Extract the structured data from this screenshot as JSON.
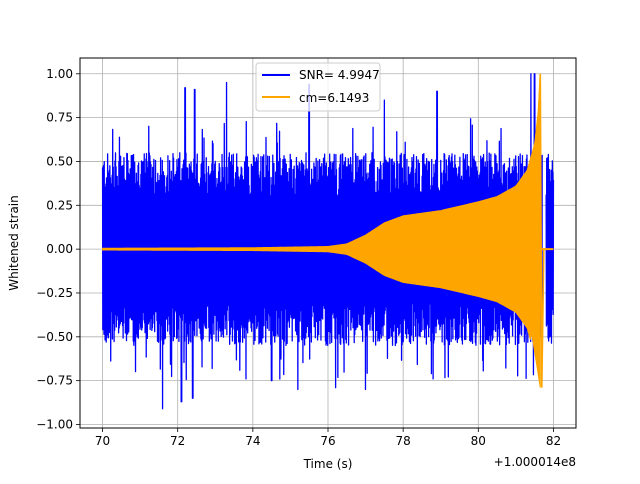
{
  "chart_data": {
    "type": "line",
    "title": "",
    "xlabel": "Time (s)",
    "ylabel": "Whitened strain",
    "x_offset_label": "+1.000014e8",
    "xlim": [
      69.4,
      82.6
    ],
    "ylim": [
      -1.02,
      1.09
    ],
    "x_ticks": [
      70,
      72,
      74,
      76,
      78,
      80,
      82
    ],
    "x_tick_labels": [
      "70",
      "72",
      "74",
      "76",
      "78",
      "80",
      "82"
    ],
    "y_ticks": [
      -1.0,
      -0.75,
      -0.5,
      -0.25,
      0.0,
      0.25,
      0.5,
      0.75,
      1.0
    ],
    "y_tick_labels": [
      "−1.00",
      "−0.75",
      "−0.50",
      "−0.25",
      "0.00",
      "0.25",
      "0.50",
      "0.75",
      "1.00"
    ],
    "grid": true,
    "legend_position": "top-center",
    "series": [
      {
        "name": "SNR= 4.9947",
        "color": "#0000ff",
        "description_kind": "whitened-noise",
        "x_range": [
          70.0,
          82.0
        ],
        "typical_envelope": 0.55,
        "noise_gap_x": [
          81.7,
          81.8
        ],
        "noise_extrema": {
          "max": [
            [
              72.2,
              0.92
            ],
            [
              72.45,
              0.91
            ],
            [
              73.3,
              0.95
            ],
            [
              75.5,
              0.94
            ],
            [
              77.5,
              0.85
            ],
            [
              78.9,
              0.9
            ],
            [
              81.4,
              1.0
            ],
            [
              81.5,
              1.0
            ]
          ],
          "min": [
            [
              71.6,
              -0.91
            ],
            [
              72.1,
              -0.87
            ],
            [
              72.4,
              -0.85
            ],
            [
              74.5,
              -0.75
            ],
            [
              75.2,
              -0.8
            ],
            [
              76.2,
              -0.79
            ],
            [
              77.0,
              -0.8
            ],
            [
              78.8,
              -0.74
            ]
          ]
        }
      },
      {
        "name": "cm=6.1493",
        "color": "#ffa500",
        "description_kind": "chirp-template",
        "x_range": [
          70.0,
          82.0
        ],
        "envelope_points": [
          [
            70.0,
            0.005
          ],
          [
            74.0,
            0.008
          ],
          [
            76.0,
            0.015
          ],
          [
            76.5,
            0.03
          ],
          [
            77.0,
            0.08
          ],
          [
            77.5,
            0.15
          ],
          [
            78.0,
            0.19
          ],
          [
            79.0,
            0.22
          ],
          [
            80.0,
            0.27
          ],
          [
            80.5,
            0.3
          ],
          [
            81.0,
            0.36
          ],
          [
            81.3,
            0.45
          ],
          [
            81.5,
            0.6
          ],
          [
            81.6,
            0.8
          ],
          [
            81.65,
            1.0
          ]
        ],
        "peak": [
          81.65,
          1.0
        ],
        "min": [
          81.65,
          -0.79
        ],
        "tail_x_range": [
          81.7,
          82.0
        ],
        "tail_value": 0.0
      }
    ]
  }
}
